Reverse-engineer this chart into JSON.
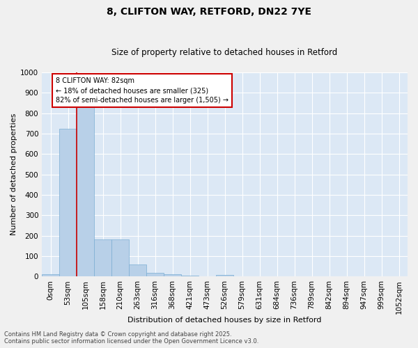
{
  "title_line1": "8, CLIFTON WAY, RETFORD, DN22 7YE",
  "title_line2": "Size of property relative to detached houses in Retford",
  "xlabel": "Distribution of detached houses by size in Retford",
  "ylabel": "Number of detached properties",
  "bar_color": "#b8d0e8",
  "bar_edge_color": "#7aaed4",
  "background_color": "#dce8f5",
  "fig_background_color": "#f0f0f0",
  "grid_color": "#ffffff",
  "categories": [
    "0sqm",
    "53sqm",
    "105sqm",
    "158sqm",
    "210sqm",
    "263sqm",
    "316sqm",
    "368sqm",
    "421sqm",
    "473sqm",
    "526sqm",
    "579sqm",
    "631sqm",
    "684sqm",
    "736sqm",
    "789sqm",
    "842sqm",
    "894sqm",
    "947sqm",
    "999sqm",
    "1052sqm"
  ],
  "values": [
    10,
    725,
    840,
    183,
    183,
    58,
    18,
    12,
    5,
    0,
    8,
    0,
    0,
    0,
    0,
    0,
    0,
    0,
    0,
    0,
    0
  ],
  "ylim": [
    0,
    1000
  ],
  "yticks": [
    0,
    100,
    200,
    300,
    400,
    500,
    600,
    700,
    800,
    900,
    1000
  ],
  "red_line_x": 1.5,
  "annotation_text": "8 CLIFTON WAY: 82sqm\n← 18% of detached houses are smaller (325)\n82% of semi-detached houses are larger (1,505) →",
  "annotation_box_facecolor": "#ffffff",
  "annotation_border_color": "#cc0000",
  "footer_line1": "Contains HM Land Registry data © Crown copyright and database right 2025.",
  "footer_line2": "Contains public sector information licensed under the Open Government Licence v3.0.",
  "title_fontsize": 10,
  "subtitle_fontsize": 8.5,
  "axis_label_fontsize": 8,
  "tick_fontsize": 7.5,
  "annotation_fontsize": 7,
  "footer_fontsize": 6
}
